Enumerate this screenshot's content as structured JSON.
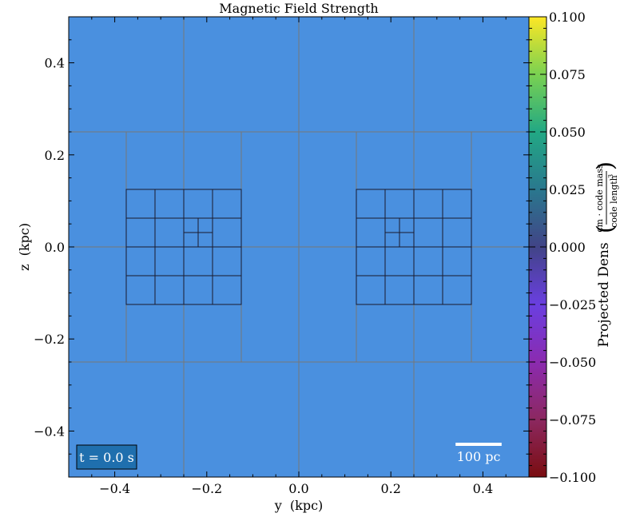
{
  "chart_data": {
    "type": "heatmap",
    "title": "Magnetic Field Strength",
    "xlabel": "y  (kpc)",
    "ylabel": "z  (kpc)",
    "xlim": [
      -0.5,
      0.5
    ],
    "ylim": [
      -0.5,
      0.5
    ],
    "x_ticks": [
      -0.4,
      -0.2,
      0.0,
      0.2,
      0.4
    ],
    "x_tick_labels": [
      "−0.4",
      "−0.2",
      "0.0",
      "0.2",
      "0.4"
    ],
    "y_ticks": [
      -0.4,
      -0.2,
      0.0,
      0.2,
      0.4
    ],
    "y_tick_labels": [
      "−0.4",
      "−0.2",
      "0.0",
      "0.2",
      "0.4"
    ],
    "field_value": 0.0,
    "field_color": "#4a90df",
    "colorbar": {
      "label": "Projected Dens",
      "unit_numerator": "cm · code mass",
      "unit_denominator": "code length",
      "unit_denominator_power": "3",
      "range": [
        -0.1,
        0.1
      ],
      "ticks": [
        0.1,
        0.075,
        0.05,
        0.025,
        0.0,
        -0.025,
        -0.05,
        -0.075,
        -0.1
      ],
      "tick_labels": [
        "0.100",
        "0.075",
        "0.050",
        "0.025",
        "0.000",
        "−0.025",
        "−0.050",
        "−0.075",
        "−0.100"
      ],
      "colormap": "viridis-top-plasma-bottom",
      "stops": [
        "#fde725",
        "#7ad151",
        "#22a884",
        "#2a788e",
        "#414487",
        "#6a3fe0",
        "#8b2bb0",
        "#8c2860",
        "#7a0d10"
      ]
    },
    "grid": {
      "level0_lines": [
        -0.25,
        0.0,
        0.25
      ],
      "level0_color": "#777777",
      "level1_boxes": [
        {
          "x": [
            -0.375,
            -0.125
          ],
          "y": [
            -0.25,
            0.25
          ]
        },
        {
          "x": [
            0.125,
            0.375
          ],
          "y": [
            -0.25,
            0.25
          ]
        }
      ],
      "level1_lines": [
        -0.375,
        -0.25,
        -0.125,
        0.0,
        0.125,
        0.25,
        0.375
      ],
      "level2_boxes": [
        {
          "x": [
            -0.375,
            -0.125
          ],
          "y": [
            -0.125,
            0.125
          ],
          "lines": [
            -0.3125,
            -0.25,
            -0.1875
          ],
          "ylines": [
            -0.0625,
            0.0,
            0.0625
          ]
        },
        {
          "x": [
            0.125,
            0.375
          ],
          "y": [
            -0.125,
            0.125
          ],
          "lines": [
            0.1875,
            0.25,
            0.3125
          ],
          "ylines": [
            -0.0625,
            0.0,
            0.0625
          ]
        }
      ],
      "level3_boxes": [
        {
          "x": [
            -0.25,
            -0.1875
          ],
          "y": [
            0.0,
            0.0625
          ]
        },
        {
          "x": [
            0.1875,
            0.25
          ],
          "y": [
            0.0,
            0.0625
          ]
        }
      ],
      "level4_boxes": [
        {
          "x": [
            -0.25,
            -0.21875
          ],
          "y": [
            0.03125,
            0.0625
          ]
        },
        {
          "x": [
            0.1875,
            0.21875
          ],
          "y": [
            0.03125,
            0.0625
          ]
        }
      ],
      "fine_color": "#1a1a2e"
    },
    "timestamp": "t = 0.0 s",
    "timestamp_box_color": "#1f6fae",
    "scale_bar": {
      "label": "100 pc",
      "length_kpc": 0.1
    }
  }
}
